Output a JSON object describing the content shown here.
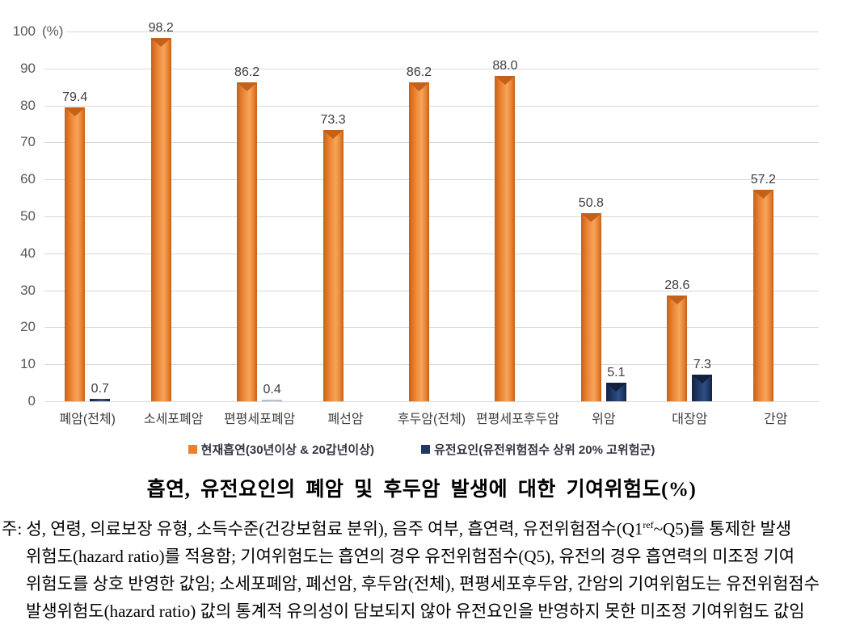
{
  "chart_data": {
    "type": "bar",
    "title": "흡연, 유전요인의 폐암 및 후두암 발생에 대한 기여위험도(%)",
    "unit_label": "(%)",
    "xlabel": "",
    "ylabel": "",
    "ylim": [
      0,
      100
    ],
    "y_ticks": [
      0,
      10,
      20,
      30,
      40,
      50,
      60,
      70,
      80,
      90,
      100
    ],
    "grid": true,
    "legend_position": "bottom",
    "categories": [
      "폐암(전체)",
      "소세포폐암",
      "편평세포폐암",
      "폐선암",
      "후두암(전체)",
      "편평세포후두암",
      "위암",
      "대장암",
      "간암"
    ],
    "series": [
      {
        "name": "현재흡연(30년이상 & 20갑년이상)",
        "color": "#EA8130",
        "color_light": "#F6A55C",
        "color_dark": "#C3611B",
        "values": [
          79.4,
          98.2,
          86.2,
          73.3,
          86.2,
          88.0,
          50.8,
          28.6,
          57.2
        ],
        "value_labels": [
          "79.4",
          "98.2",
          "86.2",
          "73.3",
          "86.2",
          "88.0",
          "50.8",
          "28.6",
          "57.2"
        ]
      },
      {
        "name": "유전요인(유전위험점수 상위 20% 고위험군)",
        "color": "#1F3864",
        "color_light": "#2E4E86",
        "color_dark": "#13223E",
        "values": [
          0.7,
          null,
          0.4,
          null,
          null,
          null,
          5.1,
          7.3,
          null
        ],
        "value_labels": [
          "0.7",
          "",
          "0.4",
          "",
          "",
          "",
          "5.1",
          "7.3",
          ""
        ]
      }
    ],
    "axis_color": "#595959",
    "gridline_color": "#D8D8D8",
    "label_color": "#3D3D3D"
  },
  "footnote": {
    "line1_pre": "주: 성, 연령, 의료보장 유형, 소득수준(건강보험료 분위), 음주 여부, 흡연력, 유전위험점수(Q1",
    "line1_sup": "ref",
    "line1_post": "~Q5)를 통제한 발생",
    "line2": "위험도(hazard ratio)를 적용함; 기여위험도는 흡연의 경우 유전위험점수(Q5), 유전의 경우 흡연력의 미조정 기여",
    "line3": "위험도를 상호 반영한 값임; 소세포폐암, 폐선암, 후두암(전체), 편평세포후두암, 간암의 기여위험도는 유전위험점수",
    "line4": "발생위험도(hazard ratio) 값의 통계적 유의성이 담보되지 않아 유전요인을 반영하지 못한 미조정 기여위험도 값임"
  }
}
